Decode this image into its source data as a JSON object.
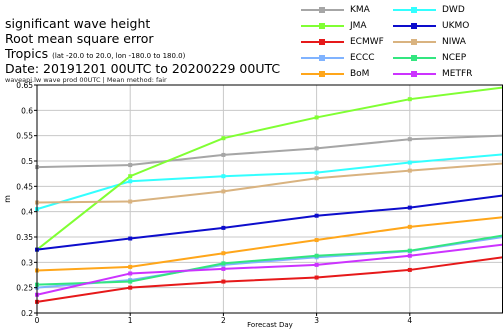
{
  "header": {
    "line1": "significant wave height",
    "line2": "Root mean square error",
    "line3_main": "Tropics",
    "line3_small": "(lat -20.0 to 20.0, lon -180.0 to 180.0)",
    "line4": "Date: 20191201 00UTC to 20200229 00UTC",
    "line5": "waveapi.lw wave prod 00UTC | Mean method: fair"
  },
  "chart_data": {
    "type": "line",
    "title": "significant wave height",
    "xlabel": "Forecast Day",
    "ylabel": "m",
    "xlim": [
      0,
      5
    ],
    "ylim": [
      0.2,
      0.65
    ],
    "x": [
      0,
      1,
      2,
      3,
      4,
      5
    ],
    "x_ticks": [
      "0",
      "1",
      "2",
      "3",
      "4"
    ],
    "y_ticks": [
      "0.2",
      "0.25",
      "0.3",
      "0.35",
      "0.4",
      "0.45",
      "0.5",
      "0.55",
      "0.6",
      "0.65"
    ],
    "grid": true,
    "legend_placement": "top-right",
    "series": [
      {
        "name": "KMA",
        "color": "#a6a6a6",
        "values": [
          0.488,
          0.492,
          0.512,
          0.525,
          0.543,
          0.55
        ]
      },
      {
        "name": "DWD",
        "color": "#33ffff",
        "values": [
          0.405,
          0.46,
          0.47,
          0.477,
          0.497,
          0.513
        ]
      },
      {
        "name": "JMA",
        "color": "#80ff33",
        "values": [
          0.325,
          0.47,
          0.545,
          0.586,
          0.622,
          0.645
        ]
      },
      {
        "name": "UKMO",
        "color": "#0d0dcc",
        "values": [
          0.325,
          0.347,
          0.368,
          0.392,
          0.408,
          0.432
        ]
      },
      {
        "name": "ECMWF",
        "color": "#e6191a",
        "values": [
          0.222,
          0.25,
          0.262,
          0.27,
          0.285,
          0.31
        ]
      },
      {
        "name": "NIWA",
        "color": "#d9b380",
        "values": [
          0.418,
          0.42,
          0.44,
          0.466,
          0.481,
          0.495
        ]
      },
      {
        "name": "ECCC",
        "color": "#80b3ff",
        "values": [
          0.25,
          0.265,
          0.295,
          0.31,
          0.322,
          0.35
        ]
      },
      {
        "name": "NCEP",
        "color": "#33e680",
        "values": [
          0.256,
          0.262,
          0.298,
          0.313,
          0.323,
          0.353
        ]
      },
      {
        "name": "BoM",
        "color": "#ffa61a",
        "values": [
          0.284,
          0.291,
          0.318,
          0.344,
          0.37,
          0.389
        ]
      },
      {
        "name": "METFR",
        "color": "#cc33ff",
        "values": [
          0.236,
          0.278,
          0.287,
          0.295,
          0.313,
          0.335
        ]
      }
    ]
  }
}
